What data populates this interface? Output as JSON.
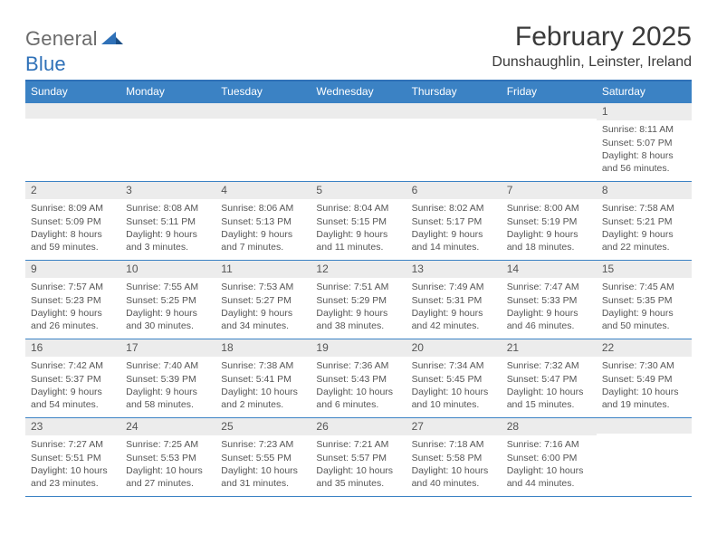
{
  "brand": {
    "part1": "General",
    "part2": "Blue"
  },
  "title": "February 2025",
  "location": "Dunshaughlin, Leinster, Ireland",
  "weekdays": [
    "Sunday",
    "Monday",
    "Tuesday",
    "Wednesday",
    "Thursday",
    "Friday",
    "Saturday"
  ],
  "colors": {
    "header_bar": "#3b82c4",
    "rule": "#2f71b8",
    "day_band": "#ececec",
    "text": "#555555",
    "brand_gray": "#6b6b6b",
    "brand_blue": "#2f71b8"
  },
  "weeks": [
    [
      {
        "n": "",
        "sunrise": "",
        "sunset": "",
        "daylight": ""
      },
      {
        "n": "",
        "sunrise": "",
        "sunset": "",
        "daylight": ""
      },
      {
        "n": "",
        "sunrise": "",
        "sunset": "",
        "daylight": ""
      },
      {
        "n": "",
        "sunrise": "",
        "sunset": "",
        "daylight": ""
      },
      {
        "n": "",
        "sunrise": "",
        "sunset": "",
        "daylight": ""
      },
      {
        "n": "",
        "sunrise": "",
        "sunset": "",
        "daylight": ""
      },
      {
        "n": "1",
        "sunrise": "Sunrise: 8:11 AM",
        "sunset": "Sunset: 5:07 PM",
        "daylight": "Daylight: 8 hours and 56 minutes."
      }
    ],
    [
      {
        "n": "2",
        "sunrise": "Sunrise: 8:09 AM",
        "sunset": "Sunset: 5:09 PM",
        "daylight": "Daylight: 8 hours and 59 minutes."
      },
      {
        "n": "3",
        "sunrise": "Sunrise: 8:08 AM",
        "sunset": "Sunset: 5:11 PM",
        "daylight": "Daylight: 9 hours and 3 minutes."
      },
      {
        "n": "4",
        "sunrise": "Sunrise: 8:06 AM",
        "sunset": "Sunset: 5:13 PM",
        "daylight": "Daylight: 9 hours and 7 minutes."
      },
      {
        "n": "5",
        "sunrise": "Sunrise: 8:04 AM",
        "sunset": "Sunset: 5:15 PM",
        "daylight": "Daylight: 9 hours and 11 minutes."
      },
      {
        "n": "6",
        "sunrise": "Sunrise: 8:02 AM",
        "sunset": "Sunset: 5:17 PM",
        "daylight": "Daylight: 9 hours and 14 minutes."
      },
      {
        "n": "7",
        "sunrise": "Sunrise: 8:00 AM",
        "sunset": "Sunset: 5:19 PM",
        "daylight": "Daylight: 9 hours and 18 minutes."
      },
      {
        "n": "8",
        "sunrise": "Sunrise: 7:58 AM",
        "sunset": "Sunset: 5:21 PM",
        "daylight": "Daylight: 9 hours and 22 minutes."
      }
    ],
    [
      {
        "n": "9",
        "sunrise": "Sunrise: 7:57 AM",
        "sunset": "Sunset: 5:23 PM",
        "daylight": "Daylight: 9 hours and 26 minutes."
      },
      {
        "n": "10",
        "sunrise": "Sunrise: 7:55 AM",
        "sunset": "Sunset: 5:25 PM",
        "daylight": "Daylight: 9 hours and 30 minutes."
      },
      {
        "n": "11",
        "sunrise": "Sunrise: 7:53 AM",
        "sunset": "Sunset: 5:27 PM",
        "daylight": "Daylight: 9 hours and 34 minutes."
      },
      {
        "n": "12",
        "sunrise": "Sunrise: 7:51 AM",
        "sunset": "Sunset: 5:29 PM",
        "daylight": "Daylight: 9 hours and 38 minutes."
      },
      {
        "n": "13",
        "sunrise": "Sunrise: 7:49 AM",
        "sunset": "Sunset: 5:31 PM",
        "daylight": "Daylight: 9 hours and 42 minutes."
      },
      {
        "n": "14",
        "sunrise": "Sunrise: 7:47 AM",
        "sunset": "Sunset: 5:33 PM",
        "daylight": "Daylight: 9 hours and 46 minutes."
      },
      {
        "n": "15",
        "sunrise": "Sunrise: 7:45 AM",
        "sunset": "Sunset: 5:35 PM",
        "daylight": "Daylight: 9 hours and 50 minutes."
      }
    ],
    [
      {
        "n": "16",
        "sunrise": "Sunrise: 7:42 AM",
        "sunset": "Sunset: 5:37 PM",
        "daylight": "Daylight: 9 hours and 54 minutes."
      },
      {
        "n": "17",
        "sunrise": "Sunrise: 7:40 AM",
        "sunset": "Sunset: 5:39 PM",
        "daylight": "Daylight: 9 hours and 58 minutes."
      },
      {
        "n": "18",
        "sunrise": "Sunrise: 7:38 AM",
        "sunset": "Sunset: 5:41 PM",
        "daylight": "Daylight: 10 hours and 2 minutes."
      },
      {
        "n": "19",
        "sunrise": "Sunrise: 7:36 AM",
        "sunset": "Sunset: 5:43 PM",
        "daylight": "Daylight: 10 hours and 6 minutes."
      },
      {
        "n": "20",
        "sunrise": "Sunrise: 7:34 AM",
        "sunset": "Sunset: 5:45 PM",
        "daylight": "Daylight: 10 hours and 10 minutes."
      },
      {
        "n": "21",
        "sunrise": "Sunrise: 7:32 AM",
        "sunset": "Sunset: 5:47 PM",
        "daylight": "Daylight: 10 hours and 15 minutes."
      },
      {
        "n": "22",
        "sunrise": "Sunrise: 7:30 AM",
        "sunset": "Sunset: 5:49 PM",
        "daylight": "Daylight: 10 hours and 19 minutes."
      }
    ],
    [
      {
        "n": "23",
        "sunrise": "Sunrise: 7:27 AM",
        "sunset": "Sunset: 5:51 PM",
        "daylight": "Daylight: 10 hours and 23 minutes."
      },
      {
        "n": "24",
        "sunrise": "Sunrise: 7:25 AM",
        "sunset": "Sunset: 5:53 PM",
        "daylight": "Daylight: 10 hours and 27 minutes."
      },
      {
        "n": "25",
        "sunrise": "Sunrise: 7:23 AM",
        "sunset": "Sunset: 5:55 PM",
        "daylight": "Daylight: 10 hours and 31 minutes."
      },
      {
        "n": "26",
        "sunrise": "Sunrise: 7:21 AM",
        "sunset": "Sunset: 5:57 PM",
        "daylight": "Daylight: 10 hours and 35 minutes."
      },
      {
        "n": "27",
        "sunrise": "Sunrise: 7:18 AM",
        "sunset": "Sunset: 5:58 PM",
        "daylight": "Daylight: 10 hours and 40 minutes."
      },
      {
        "n": "28",
        "sunrise": "Sunrise: 7:16 AM",
        "sunset": "Sunset: 6:00 PM",
        "daylight": "Daylight: 10 hours and 44 minutes."
      },
      {
        "n": "",
        "sunrise": "",
        "sunset": "",
        "daylight": ""
      }
    ]
  ]
}
